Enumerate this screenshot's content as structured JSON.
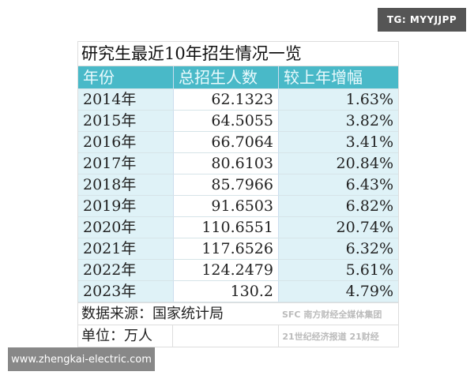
{
  "watermarks": {
    "tg": "TG: MYYJJPP",
    "site": "www.zhengkai-electric.com",
    "logo_top": "SFC 南方财经全媒体集团",
    "logo_bottom": "21世纪经济报道 21财经"
  },
  "table": {
    "title": "研究生最近10年招生情况一览",
    "headers": [
      "年份",
      "总招生人数",
      "较上年增幅"
    ],
    "rows": [
      [
        "2014年",
        "62.1323",
        "1.63%"
      ],
      [
        "2015年",
        "64.5055",
        "3.82%"
      ],
      [
        "2016年",
        "66.7064",
        "3.41%"
      ],
      [
        "2017年",
        "80.6103",
        "20.84%"
      ],
      [
        "2018年",
        "85.7966",
        "6.43%"
      ],
      [
        "2019年",
        "91.6503",
        "6.82%"
      ],
      [
        "2020年",
        "110.6551",
        "20.74%"
      ],
      [
        "2021年",
        "117.6526",
        "6.32%"
      ],
      [
        "2022年",
        "124.2479",
        "5.61%"
      ],
      [
        "2023年",
        "130.2",
        "4.79%"
      ]
    ],
    "source": "数据来源：国家统计局",
    "unit": "单位：万人"
  },
  "colors": {
    "header": "#49b9c8",
    "band": "#dff2f7"
  }
}
